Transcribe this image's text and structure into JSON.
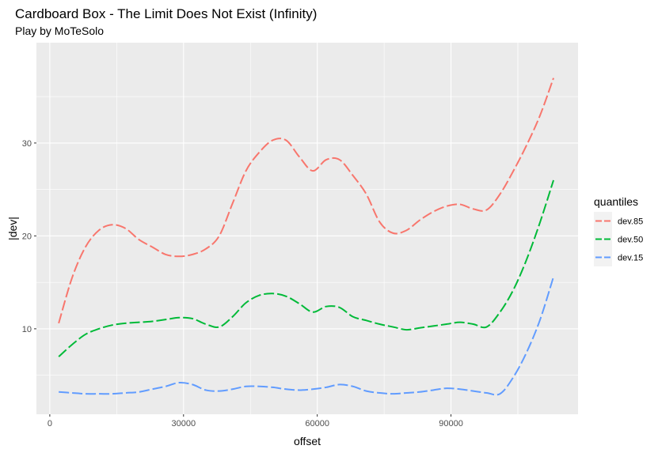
{
  "chart_data": {
    "type": "line",
    "title": "Cardboard Box - The Limit Does Not Exist (Infinity)",
    "subtitle": "Play by MoTeSolo",
    "xlabel": "offset",
    "ylabel": "|dev|",
    "xlim": [
      -3000,
      118500
    ],
    "ylim": [
      0.8,
      40.8
    ],
    "x_ticks": [
      0,
      30000,
      60000,
      90000
    ],
    "x_tick_labels": [
      "0",
      "30000",
      "60000",
      "90000"
    ],
    "y_ticks": [
      10,
      20,
      30
    ],
    "y_tick_labels": [
      "10",
      "20",
      "30"
    ],
    "grid": true,
    "legend": {
      "title": "quantiles",
      "position": "right"
    },
    "series": [
      {
        "name": "dev.85",
        "color": "#F8766D",
        "x": [
          2000,
          5000,
          8000,
          11000,
          14000,
          17000,
          20000,
          23000,
          26000,
          29000,
          32000,
          35000,
          38000,
          41000,
          44000,
          47000,
          50000,
          53000,
          56000,
          59000,
          62000,
          65000,
          68000,
          71000,
          74000,
          77000,
          80000,
          83000,
          86000,
          89000,
          92000,
          95000,
          98000,
          101000,
          104000,
          107000,
          110000,
          113000
        ],
        "y": [
          10.6,
          15.5,
          18.8,
          20.6,
          21.2,
          20.8,
          19.6,
          18.8,
          18.0,
          17.8,
          18.0,
          18.6,
          20.0,
          23.5,
          27.0,
          29.0,
          30.3,
          30.3,
          28.5,
          27.0,
          28.2,
          28.2,
          26.5,
          24.5,
          21.5,
          20.3,
          20.6,
          21.7,
          22.6,
          23.2,
          23.4,
          22.9,
          22.8,
          24.5,
          27.0,
          29.8,
          33.0,
          37.0
        ]
      },
      {
        "name": "dev.50",
        "color": "#00BA38",
        "x": [
          2000,
          5000,
          8000,
          11000,
          14000,
          17000,
          20000,
          23000,
          26000,
          29000,
          32000,
          35000,
          38000,
          41000,
          44000,
          47000,
          50000,
          53000,
          56000,
          59000,
          62000,
          65000,
          68000,
          71000,
          74000,
          77000,
          80000,
          83000,
          86000,
          89000,
          92000,
          95000,
          98000,
          101000,
          104000,
          107000,
          110000,
          113000
        ],
        "y": [
          7.0,
          8.3,
          9.4,
          10.0,
          10.4,
          10.6,
          10.7,
          10.8,
          11.0,
          11.2,
          11.1,
          10.5,
          10.2,
          11.3,
          12.8,
          13.6,
          13.8,
          13.5,
          12.7,
          11.8,
          12.4,
          12.3,
          11.3,
          10.9,
          10.5,
          10.2,
          9.9,
          10.1,
          10.3,
          10.5,
          10.7,
          10.5,
          10.2,
          11.8,
          14.2,
          17.5,
          21.5,
          26.0
        ]
      },
      {
        "name": "dev.15",
        "color": "#619CFF",
        "x": [
          2000,
          5000,
          8000,
          11000,
          14000,
          17000,
          20000,
          23000,
          26000,
          29000,
          32000,
          35000,
          38000,
          41000,
          44000,
          47000,
          50000,
          53000,
          56000,
          59000,
          62000,
          65000,
          68000,
          71000,
          74000,
          77000,
          80000,
          83000,
          86000,
          89000,
          92000,
          95000,
          98000,
          101000,
          104000,
          107000,
          110000,
          113000
        ],
        "y": [
          3.2,
          3.1,
          3.0,
          3.0,
          3.0,
          3.1,
          3.2,
          3.5,
          3.8,
          4.2,
          4.0,
          3.4,
          3.3,
          3.5,
          3.8,
          3.8,
          3.7,
          3.5,
          3.4,
          3.5,
          3.7,
          4.0,
          3.8,
          3.3,
          3.1,
          3.0,
          3.1,
          3.2,
          3.4,
          3.6,
          3.5,
          3.3,
          3.1,
          3.0,
          4.8,
          7.5,
          11.0,
          15.6
        ]
      }
    ]
  }
}
